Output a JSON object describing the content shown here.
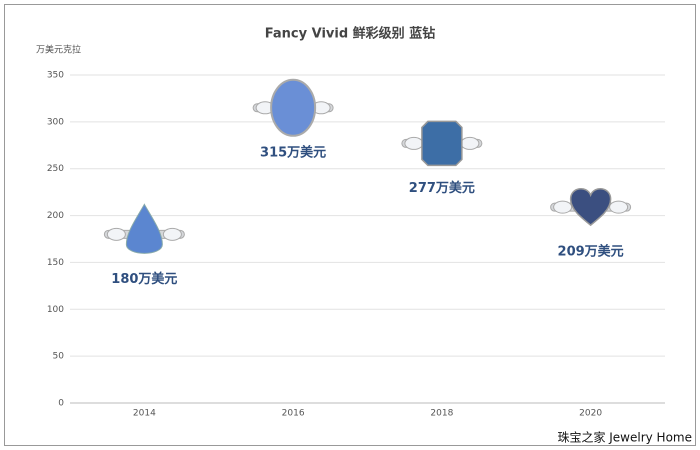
{
  "chart_data": {
    "type": "scatter",
    "title": "Fancy Vivid 鲜彩级别 蓝钻",
    "y_label": "万美元克拉",
    "categories": [
      "2014",
      "2016",
      "2018",
      "2020"
    ],
    "values": [
      180,
      315,
      277,
      209
    ],
    "value_labels": [
      "180万美元",
      "315万美元",
      "277万美元",
      "209万美元"
    ],
    "colors": [
      "#5b86d0",
      "#6a8fd6",
      "#3d6ea6",
      "#3b4f80"
    ],
    "ylim": [
      0,
      350
    ],
    "yticks": [
      0,
      50,
      100,
      150,
      200,
      250,
      300,
      350
    ],
    "grid": true,
    "watermark": "珠宝之家 Jewelry Home"
  }
}
